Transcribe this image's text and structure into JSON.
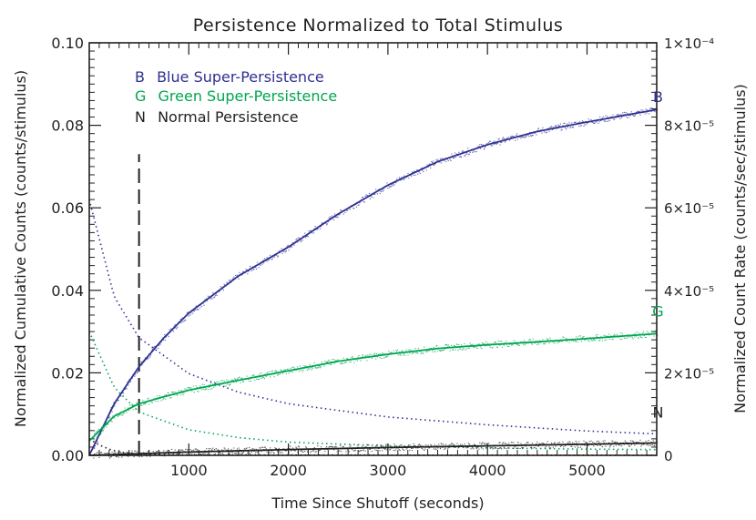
{
  "chart_data": {
    "type": "line",
    "title": "Persistence Normalized to Total Stimulus",
    "xlabel": "Time Since Shutoff (seconds)",
    "ylabel": "Normalized Cumulative Counts (counts/stimulus)",
    "y2label": "Normalized Count Rate (counts/sec/stimulus)",
    "xlim": [
      0,
      5700
    ],
    "ylim": [
      0,
      0.1
    ],
    "y2lim": [
      0,
      0.0001
    ],
    "x_ticks": [
      1000,
      2000,
      3000,
      4000,
      5000
    ],
    "x_tick_labels": [
      "1000",
      "2000",
      "3000",
      "4000",
      "5000"
    ],
    "y_ticks": [
      0,
      0.02,
      0.04,
      0.06,
      0.08,
      0.1
    ],
    "y_tick_labels": [
      "0.00",
      "0.02",
      "0.04",
      "0.06",
      "0.08",
      "0.10"
    ],
    "y2_ticks": [
      0,
      2e-05,
      4e-05,
      6e-05,
      8e-05,
      0.0001
    ],
    "y2_tick_labels": [
      "0",
      "2×10⁻⁵",
      "4×10⁻⁵",
      "6×10⁻⁵",
      "8×10⁻⁵",
      "1×10⁻⁴"
    ],
    "marker_line": {
      "x": 500,
      "y_range": [
        0,
        0.073
      ],
      "style": "dashed"
    },
    "legend": [
      {
        "key": "B",
        "label": "Blue Super-Persistence",
        "color": "#2e3192"
      },
      {
        "key": "G",
        "label": "Green Super-Persistence",
        "color": "#00a651"
      },
      {
        "key": "N",
        "label": "Normal Persistence",
        "color": "#231f20"
      }
    ],
    "series": [
      {
        "name": "Blue Super-Persistence",
        "label": "B",
        "color": "#2e3192",
        "label_at": {
          "x": 5000,
          "y": 0.087
        },
        "cumulative": {
          "x": [
            0,
            250,
            500,
            750,
            1000,
            1500,
            2000,
            2500,
            3000,
            3500,
            4000,
            4500,
            5000,
            5700
          ],
          "y": [
            0.0,
            0.0125,
            0.0215,
            0.0285,
            0.0345,
            0.0435,
            0.0505,
            0.0585,
            0.0655,
            0.0712,
            0.0753,
            0.0785,
            0.0808,
            0.0838
          ]
        },
        "rate": {
          "x": [
            0,
            250,
            500,
            1000,
            1500,
            2000,
            3000,
            4000,
            5000,
            5700
          ],
          "y": [
            6.2e-05,
            3.85e-05,
            2.85e-05,
            1.98e-05,
            1.53e-05,
            1.25e-05,
            9.3e-06,
            7.4e-06,
            5.9e-06,
            5.2e-06
          ]
        }
      },
      {
        "name": "Green Super-Persistence",
        "label": "G",
        "color": "#00a651",
        "label_at": {
          "x": 5000,
          "y": 0.035
        },
        "cumulative": {
          "x": [
            0,
            250,
            500,
            750,
            1000,
            1500,
            2000,
            2500,
            3000,
            3500,
            4000,
            4500,
            5000,
            5700
          ],
          "y": [
            0.0035,
            0.0095,
            0.0125,
            0.0142,
            0.0158,
            0.0182,
            0.0205,
            0.0228,
            0.0245,
            0.0259,
            0.0268,
            0.0275,
            0.0283,
            0.0295
          ]
        },
        "rate": {
          "x": [
            0,
            250,
            500,
            1000,
            1500,
            2000,
            3000,
            4000,
            5000,
            5700
          ],
          "y": [
            3e-05,
            1.65e-05,
            1.05e-05,
            6.2e-06,
            4.3e-06,
            3.2e-06,
            2.3e-06,
            1.8e-06,
            1.5e-06,
            1.4e-06
          ]
        }
      },
      {
        "name": "Normal Persistence",
        "label": "N",
        "color": "#231f20",
        "label_at": {
          "x": 5000,
          "y": 0.0105
        },
        "cumulative": {
          "x": [
            0,
            500,
            1000,
            2000,
            3000,
            4000,
            5000,
            5700
          ],
          "y": [
            0.0,
            0.0004,
            0.0008,
            0.0014,
            0.0019,
            0.0023,
            0.0027,
            0.003
          ]
        },
        "rate": {
          "x": [
            0,
            100,
            200,
            300,
            500,
            1000,
            5700
          ],
          "y": [
            4e-06,
            2.5e-06,
            1.5e-06,
            8e-07,
            3e-07,
            1e-07,
            0.0
          ]
        }
      }
    ]
  }
}
